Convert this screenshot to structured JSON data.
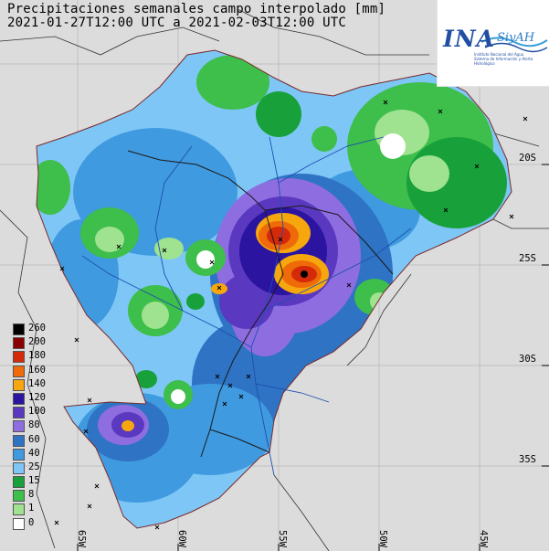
{
  "title": {
    "line1": "Precipitaciones semanales campo interpolado [mm]",
    "line2": "2021-01-27T12:00 UTC a 2021-02-03T12:00 UTC"
  },
  "logo": {
    "name": "INA",
    "brand": "SiyAH",
    "institution": "Instituto Nacional del Agua",
    "subtitle": "Sistema de Información y Alerta Hidrológico"
  },
  "legend": [
    {
      "label": "260",
      "color": "#000000"
    },
    {
      "label": "200",
      "color": "#8a0000"
    },
    {
      "label": "180",
      "color": "#d42a0a"
    },
    {
      "label": "160",
      "color": "#ef6a08"
    },
    {
      "label": "140",
      "color": "#f6a70e"
    },
    {
      "label": "120",
      "color": "#2a14a0"
    },
    {
      "label": "100",
      "color": "#5a38c0"
    },
    {
      "label": "80",
      "color": "#8e6de0"
    },
    {
      "label": "60",
      "color": "#2f73c4"
    },
    {
      "label": "40",
      "color": "#3f9ae0"
    },
    {
      "label": "25",
      "color": "#7ec6f6"
    },
    {
      "label": "15",
      "color": "#18a13a"
    },
    {
      "label": "8",
      "color": "#3ebe4a"
    },
    {
      "label": "1",
      "color": "#9fe28f"
    },
    {
      "label": "0",
      "color": "#ffffff"
    }
  ],
  "latitude_labels": [
    "20S",
    "25S",
    "30S",
    "35S"
  ],
  "longitude_labels": [
    "65W",
    "60W",
    "55W",
    "50W",
    "45W"
  ]
}
